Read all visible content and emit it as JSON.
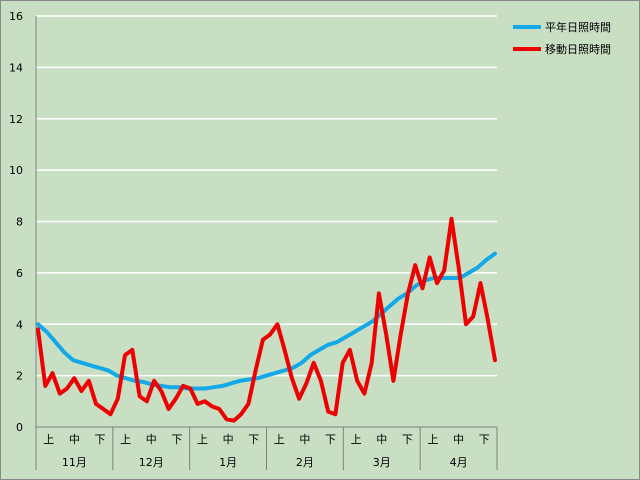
{
  "chart_data": {
    "type": "line",
    "ylim": [
      0,
      16
    ],
    "yticks": [
      0,
      2,
      4,
      6,
      8,
      10,
      12,
      14,
      16
    ],
    "grid": "horizontal",
    "legend_position": "top-right",
    "x_sub_labels": [
      "上",
      "中",
      "下",
      "上",
      "中",
      "下",
      "上",
      "中",
      "下",
      "上",
      "中",
      "下",
      "上",
      "中",
      "下",
      "上",
      "中",
      "下"
    ],
    "x_month_labels": [
      "11月",
      "12月",
      "1月",
      "2月",
      "3月",
      "4月"
    ],
    "series": [
      {
        "name": "平年日照時間",
        "color": "#13a9e8",
        "values": [
          4.0,
          3.7,
          3.3,
          2.9,
          2.6,
          2.5,
          2.4,
          2.3,
          2.2,
          2.0,
          1.9,
          1.8,
          1.75,
          1.65,
          1.6,
          1.55,
          1.55,
          1.5,
          1.5,
          1.5,
          1.55,
          1.6,
          1.7,
          1.8,
          1.85,
          1.9,
          2.0,
          2.1,
          2.2,
          2.3,
          2.5,
          2.8,
          3.0,
          3.2,
          3.3,
          3.5,
          3.7,
          3.9,
          4.1,
          4.4,
          4.7,
          5.0,
          5.2,
          5.5,
          5.7,
          5.8,
          5.8,
          5.8,
          5.8,
          6.0,
          6.2,
          6.5,
          6.75
        ]
      },
      {
        "name": "移動日照時間",
        "color": "#ee0000",
        "values": [
          3.8,
          1.6,
          2.1,
          1.3,
          1.5,
          1.9,
          1.4,
          1.8,
          0.9,
          0.7,
          0.5,
          1.1,
          2.8,
          3.0,
          1.2,
          1.0,
          1.8,
          1.4,
          0.7,
          1.1,
          1.6,
          1.5,
          0.9,
          1.0,
          0.8,
          0.7,
          0.3,
          0.25,
          0.5,
          0.9,
          2.2,
          3.4,
          3.6,
          4.0,
          3.0,
          1.9,
          1.1,
          1.7,
          2.5,
          1.8,
          0.6,
          0.5,
          2.5,
          3.0,
          1.8,
          1.3,
          2.5,
          5.2,
          3.6,
          1.8,
          3.6,
          5.2,
          6.3,
          5.4,
          6.6,
          5.6,
          6.1,
          8.1,
          6.2,
          4.0,
          4.3,
          5.6,
          4.2,
          2.6
        ]
      }
    ]
  }
}
